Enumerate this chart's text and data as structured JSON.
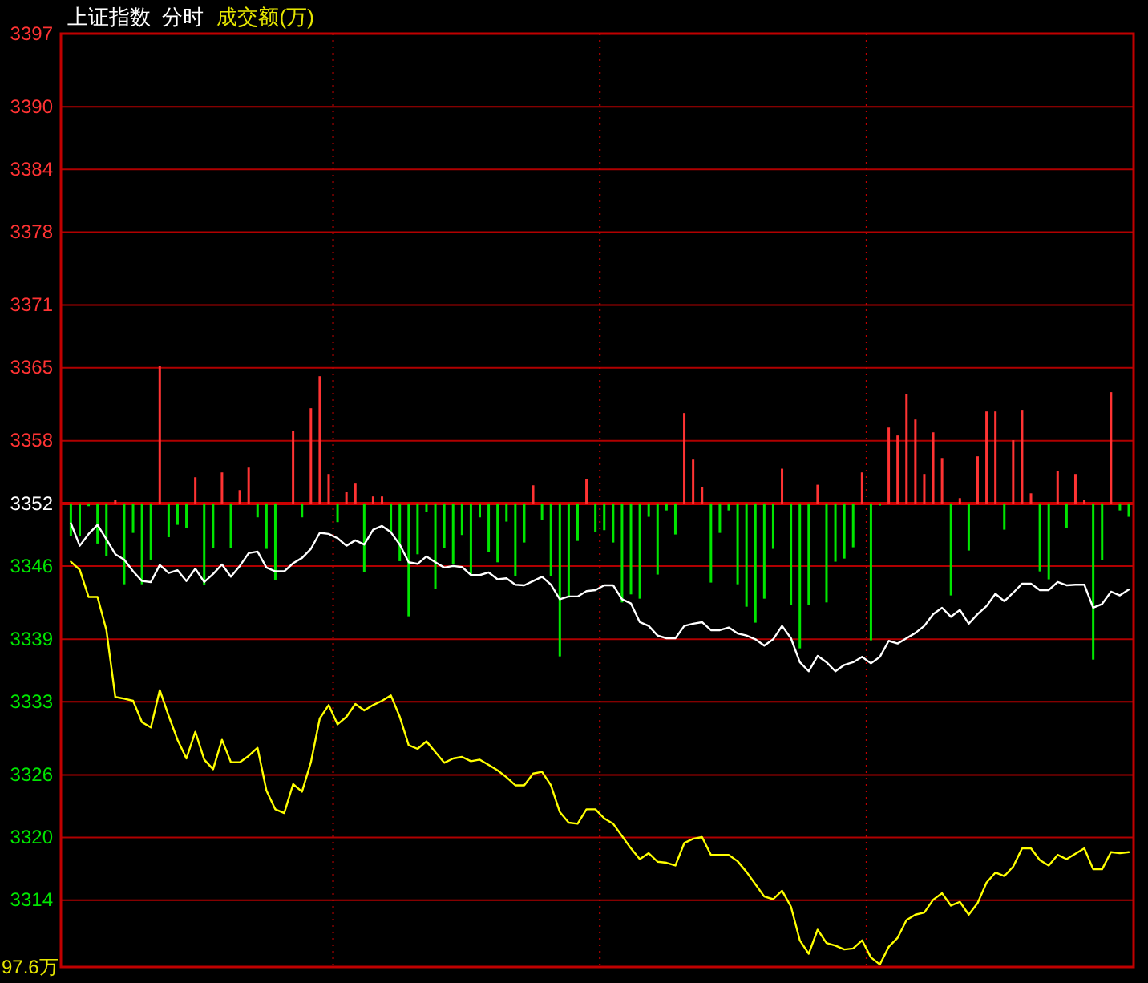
{
  "chart_data": {
    "type": "line",
    "title": "上证指数  分时",
    "subtitle": "成交额(万)",
    "annotations": [
      "97.6万"
    ],
    "categories": [
      null,
      null,
      null,
      null,
      null,
      null,
      null,
      null,
      null,
      null,
      null,
      null,
      null,
      null,
      null,
      null,
      null,
      null,
      null,
      null,
      null,
      null,
      null,
      null,
      null,
      null,
      null,
      null,
      null,
      null,
      null,
      null,
      null,
      null,
      null,
      null,
      null,
      null,
      null,
      null,
      null,
      null,
      null,
      null,
      null,
      null,
      null,
      null,
      null,
      null,
      null,
      null,
      null,
      null,
      null,
      null,
      null,
      null,
      null,
      null,
      null,
      null,
      null,
      null,
      null,
      null,
      null,
      null,
      null,
      null,
      null,
      null,
      null,
      null,
      null,
      null,
      null,
      null,
      null,
      null,
      null,
      null,
      null,
      null,
      null,
      null,
      null,
      null,
      null,
      null,
      null,
      null,
      null,
      null,
      null,
      null,
      null,
      null,
      null,
      null,
      null,
      null,
      null,
      null,
      null,
      null,
      null,
      null,
      null,
      null,
      null,
      null,
      null,
      null,
      null,
      null,
      null,
      null,
      null,
      null
    ],
    "ylim": [
      3307.6,
      3397
    ],
    "yticks": [
      3314,
      3320,
      3326,
      3333,
      3339,
      3346,
      3352,
      3358,
      3365,
      3371,
      3378,
      3384,
      3390,
      3397
    ],
    "tick_labels": "y",
    "grid": true,
    "line_style": "solid",
    "ref_lines": [
      {
        "axis": "y",
        "value": 3352,
        "color": "#cc0000"
      }
    ],
    "series": [
      {
        "type": "bar",
        "values": [
          -3.13,
          -3.13,
          -0.26,
          -3.84,
          -5.02,
          0.36,
          -7.74,
          -2.82,
          -7.74,
          -5.38,
          13.17,
          -3.23,
          -2.05,
          -2.36,
          2.51,
          -7.84,
          -4.25,
          2.97,
          -4.25,
          1.28,
          3.43,
          -1.33,
          -4.35,
          -7.33,
          null,
          6.97,
          -1.33,
          9.12,
          12.19,
          2.82,
          -1.79,
          1.13,
          1.9,
          -6.56,
          0.67,
          0.67,
          -2.72,
          -5.53,
          -10.81,
          -4.87,
          -0.82,
          -8.2,
          -4.25,
          -5.79,
          -3.02,
          -6.81,
          -1.33,
          -4.66,
          -5.64,
          -1.74,
          -6.92,
          -3.74,
          1.74,
          -1.59,
          -6.97,
          -14.65,
          -9.02,
          -3.59,
          2.36,
          -2.72,
          -2.56,
          -3.74,
          -9.48,
          -8.71,
          -9.12,
          -1.28,
          -6.81,
          -0.67,
          -2.97,
          8.66,
          4.2,
          1.59,
          -7.58,
          -2.82,
          -0.67,
          -7.74,
          -9.89,
          -11.42,
          -9.12,
          -4.35,
          3.33,
          -9.73,
          -13.88,
          -9.73,
          1.79,
          -9.48,
          -5.58,
          -5.28,
          -4.2,
          2.97,
          -13.11,
          -0.2,
          7.27,
          6.51,
          10.5,
          8.04,
          2.82,
          6.81,
          4.35,
          -8.81,
          0.51,
          -4.51,
          4.51,
          8.81,
          8.81,
          -2.51,
          6.05,
          8.97,
          0.97,
          -6.51,
          -7.27,
          3.13,
          -2.36,
          2.82,
          0.36,
          -14.96,
          -5.43,
          10.66,
          -0.67,
          -1.28
        ],
        "colors": [
          "#00e600",
          "#00e600",
          "#00e600",
          "#00e600",
          "#00e600",
          "#ff3333",
          "#00e600",
          "#00e600",
          "#00e600",
          "#00e600",
          "#ff3333",
          "#00e600",
          "#00e600",
          "#00e600",
          "#ff3333",
          "#00e600",
          "#00e600",
          "#ff3333",
          "#00e600",
          "#ff3333",
          "#ff3333",
          "#00e600",
          "#00e600",
          "#00e600",
          null,
          "#ff3333",
          "#00e600",
          "#ff3333",
          "#ff3333",
          "#ff3333",
          "#00e600",
          "#ff3333",
          "#ff3333",
          "#00e600",
          "#ff3333",
          "#ff3333",
          "#00e600",
          "#00e600",
          "#00e600",
          "#00e600",
          "#00e600",
          "#00e600",
          "#00e600",
          "#00e600",
          "#00e600",
          "#00e600",
          "#00e600",
          "#00e600",
          "#00e600",
          "#00e600",
          "#00e600",
          "#00e600",
          "#ff3333",
          "#00e600",
          "#00e600",
          "#00e600",
          "#00e600",
          "#00e600",
          "#ff3333",
          "#00e600",
          "#00e600",
          "#00e600",
          "#00e600",
          "#00e600",
          "#00e600",
          "#00e600",
          "#00e600",
          "#00e600",
          "#00e600",
          "#ff3333",
          "#ff3333",
          "#ff3333",
          "#00e600",
          "#00e600",
          "#00e600",
          "#00e600",
          "#00e600",
          "#00e600",
          "#00e600",
          "#00e600",
          "#ff3333",
          "#00e600",
          "#00e600",
          "#00e600",
          "#ff3333",
          "#00e600",
          "#00e600",
          "#00e600",
          "#00e600",
          "#ff3333",
          "#00e600",
          "#00e600",
          "#ff3333",
          "#ff3333",
          "#ff3333",
          "#ff3333",
          "#ff3333",
          "#ff3333",
          "#ff3333",
          "#00e600",
          "#ff3333",
          "#00e600",
          "#ff3333",
          "#ff3333",
          "#ff3333",
          "#00e600",
          "#ff3333",
          "#ff3333",
          "#ff3333",
          "#00e600",
          "#00e600",
          "#ff3333",
          "#00e600",
          "#ff3333",
          "#ff3333",
          "#00e600",
          "#00e600",
          "#ff3333",
          "#00e600",
          "#00e600"
        ],
        "base": [
          3352,
          3352,
          3352,
          3352,
          3352,
          3352,
          3352,
          3352,
          3352,
          3352,
          3352,
          3352,
          3352,
          3352,
          3352,
          3352,
          3352,
          3352,
          3352,
          3352,
          3352,
          3352,
          3352,
          3352,
          null,
          3352,
          3352,
          3352,
          3352,
          3352,
          3352,
          3352,
          3352,
          3352,
          3352,
          3352,
          3352,
          3352,
          3352,
          3352,
          3352,
          3352,
          3352,
          3352,
          3352,
          3352,
          3352,
          3352,
          3352,
          3352,
          3352,
          3352,
          3352,
          3352,
          3352,
          3352,
          3352,
          3352,
          3352,
          3352,
          3352,
          3352,
          3352,
          3352,
          3352,
          3352,
          3352,
          3352,
          3352,
          3352,
          3352,
          3352,
          3352,
          3352,
          3352,
          3352,
          3352,
          3352,
          3352,
          3352,
          3352,
          3352,
          3352,
          3352,
          3352,
          3352,
          3352,
          3352,
          3352,
          3352,
          3352,
          3352,
          3352,
          3352,
          3352,
          3352,
          3352,
          3352,
          3352,
          3352,
          3352,
          3352,
          3352,
          3352,
          3352,
          3352,
          3352,
          3352,
          3352,
          3352,
          3352,
          3352,
          3352,
          3352,
          3352,
          3352,
          3352,
          3352,
          3352,
          3352
        ]
      },
      {
        "color": "#ffffff",
        "values": [
          3350.11,
          3347.95,
          3349.08,
          3349.95,
          3348.57,
          3347.14,
          3346.62,
          3345.5,
          3344.57,
          3344.47,
          3346.11,
          3345.34,
          3345.6,
          3344.57,
          3345.75,
          3344.47,
          3345.24,
          3346.16,
          3344.98,
          3346.01,
          3347.24,
          3347.39,
          3345.86,
          3345.5,
          3345.5,
          3346.27,
          3346.78,
          3347.65,
          3349.19,
          3349.08,
          3348.67,
          3347.95,
          3348.47,
          3348.06,
          3349.49,
          3349.85,
          3349.24,
          3348.06,
          3346.37,
          3346.21,
          3346.93,
          3346.37,
          3345.86,
          3346.01,
          3345.91,
          3345.14,
          3345.14,
          3345.39,
          3344.73,
          3344.83,
          3344.22,
          3344.16,
          3344.57,
          3344.98,
          3344.22,
          3342.83,
          3343.09,
          3343.09,
          3343.6,
          3343.7,
          3344.16,
          3344.16,
          3342.83,
          3342.42,
          3340.63,
          3340.27,
          3339.35,
          3339.09,
          3339.09,
          3340.27,
          3340.48,
          3340.63,
          3339.86,
          3339.86,
          3340.12,
          3339.55,
          3339.35,
          3338.99,
          3338.38,
          3338.99,
          3340.27,
          3339.09,
          3336.79,
          3335.92,
          3337.4,
          3336.79,
          3335.92,
          3336.53,
          3336.79,
          3337.3,
          3336.68,
          3337.3,
          3338.84,
          3338.58,
          3339.09,
          3339.6,
          3340.27,
          3341.4,
          3342.01,
          3341.14,
          3341.81,
          3340.48,
          3341.4,
          3342.17,
          3343.35,
          3342.63,
          3343.45,
          3344.32,
          3344.32,
          3343.7,
          3343.7,
          3344.47,
          3344.16,
          3344.22,
          3344.22,
          3342.01,
          3342.37,
          3343.55,
          3343.19,
          3343.75
        ]
      },
      {
        "color": "#ffff00",
        "values": [
          3346.42,
          3345.65,
          3343.04,
          3343.04,
          3339.86,
          3333.46,
          3333.3,
          3333.1,
          3331.05,
          3330.54,
          3334.12,
          3331.66,
          3329.36,
          3327.57,
          3330.13,
          3327.46,
          3326.54,
          3329.36,
          3327.21,
          3327.21,
          3327.82,
          3328.59,
          3324.49,
          3322.7,
          3322.34,
          3325.11,
          3324.39,
          3327.21,
          3331.41,
          3332.69,
          3330.84,
          3331.56,
          3332.79,
          3332.18,
          3332.69,
          3333.1,
          3333.61,
          3331.56,
          3328.85,
          3328.49,
          3329.21,
          3328.18,
          3327.16,
          3327.57,
          3327.72,
          3327.31,
          3327.46,
          3326.95,
          3326.44,
          3325.77,
          3325.0,
          3325.0,
          3326.13,
          3326.29,
          3325.0,
          3322.44,
          3321.42,
          3321.32,
          3322.7,
          3322.7,
          3321.83,
          3321.32,
          3320.14,
          3318.96,
          3317.93,
          3318.5,
          3317.68,
          3317.58,
          3317.32,
          3319.47,
          3319.88,
          3320.04,
          3318.34,
          3318.34,
          3318.34,
          3317.73,
          3316.71,
          3315.53,
          3314.35,
          3314.09,
          3314.91,
          3313.38,
          3310.15,
          3308.87,
          3311.17,
          3309.89,
          3309.64,
          3309.28,
          3309.38,
          3310.15,
          3308.51,
          3307.84,
          3309.53,
          3310.4,
          3312.09,
          3312.61,
          3312.81,
          3314.04,
          3314.66,
          3313.48,
          3313.84,
          3312.61,
          3313.73,
          3315.68,
          3316.65,
          3316.3,
          3317.22,
          3318.96,
          3318.96,
          3317.83,
          3317.32,
          3318.34,
          3317.93,
          3318.45,
          3318.96,
          3316.96,
          3316.96,
          3318.6,
          3318.5,
          3318.6
        ]
      }
    ]
  }
}
